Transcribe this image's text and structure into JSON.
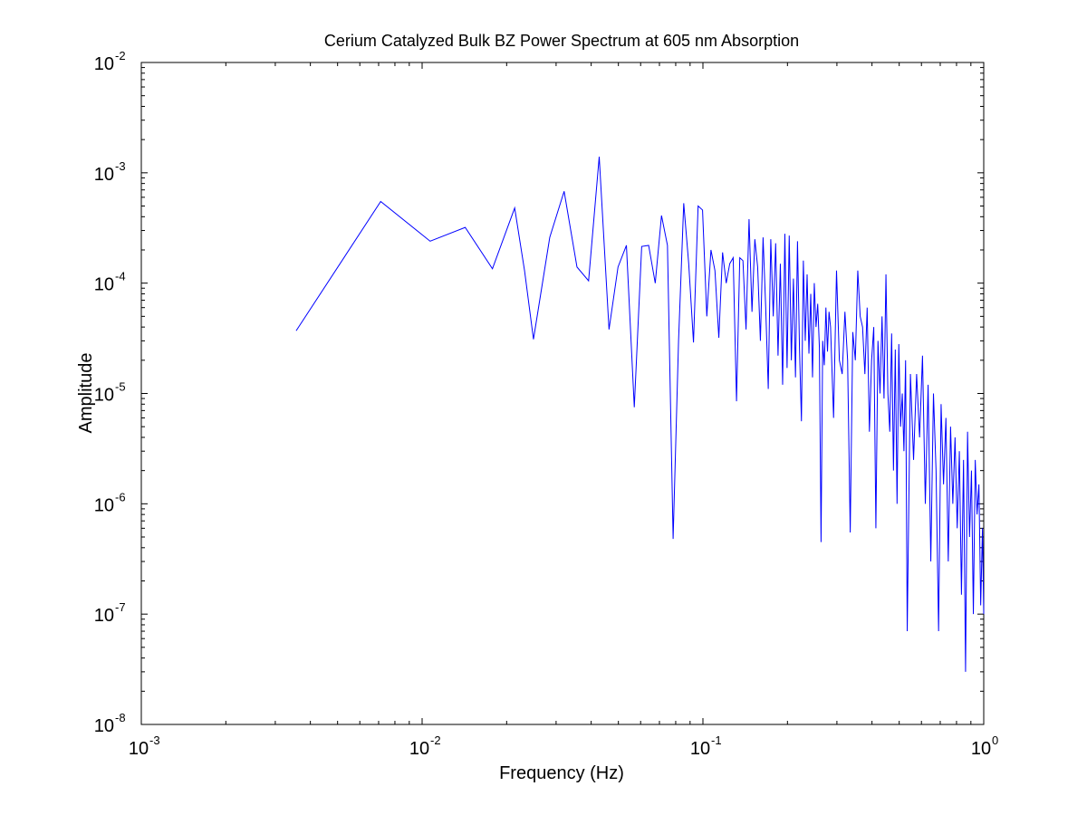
{
  "chart_data": {
    "type": "line",
    "title": "Cerium Catalyzed Bulk BZ Power Spectrum at 605 nm Absorption",
    "xlabel": "Frequency (Hz)",
    "ylabel": "Amplitude",
    "xscale": "log",
    "yscale": "log",
    "xlim": [
      0.001,
      1
    ],
    "ylim": [
      1e-08,
      0.01
    ],
    "grid": false,
    "legend": "none",
    "line_color": "#0000ff",
    "x_ticks": [
      {
        "base": "10",
        "exp": "-3",
        "value": 0.001
      },
      {
        "base": "10",
        "exp": "-2",
        "value": 0.01
      },
      {
        "base": "10",
        "exp": "-1",
        "value": 0.1
      },
      {
        "base": "10",
        "exp": "0",
        "value": 1
      }
    ],
    "y_ticks": [
      {
        "base": "10",
        "exp": "-8",
        "value": 1e-08
      },
      {
        "base": "10",
        "exp": "-7",
        "value": 1e-07
      },
      {
        "base": "10",
        "exp": "-6",
        "value": 1e-06
      },
      {
        "base": "10",
        "exp": "-5",
        "value": 1e-05
      },
      {
        "base": "10",
        "exp": "-4",
        "value": 0.0001
      },
      {
        "base": "10",
        "exp": "-3",
        "value": 0.001
      },
      {
        "base": "10",
        "exp": "-2",
        "value": 0.01
      }
    ],
    "series": [
      {
        "x": [
          0.00356,
          0.00712,
          0.01068,
          0.01424,
          0.0178,
          0.02136,
          0.02316,
          0.02492,
          0.02848,
          0.03204,
          0.0356,
          0.03916,
          0.04272,
          0.0463,
          0.04985,
          0.0534,
          0.05696,
          0.06052,
          0.06408,
          0.06764,
          0.0712,
          0.07476,
          0.07832,
          0.08188,
          0.08544,
          0.089,
          0.09256,
          0.09612,
          0.09968,
          0.10324,
          0.1068,
          0.11036,
          0.11392,
          0.11748,
          0.12104,
          0.1246,
          0.12816,
          0.13172,
          0.13528,
          0.13884,
          0.1424,
          0.14596,
          0.14952,
          0.15308,
          0.15664,
          0.1602,
          0.16376,
          0.16732,
          0.17088,
          0.17444,
          0.178,
          0.18156,
          0.18512,
          0.18868,
          0.19224,
          0.1958,
          0.19936,
          0.20292,
          0.20648,
          0.21004,
          0.2136,
          0.21716,
          0.22072,
          0.22428,
          0.22784,
          0.2314,
          0.23496,
          0.23852,
          0.24208,
          0.24564,
          0.2492,
          0.25276,
          0.25632,
          0.25988,
          0.26344,
          0.267,
          0.27056,
          0.27412,
          0.27768,
          0.28124,
          0.2848,
          0.29192,
          0.29904,
          0.30616,
          0.31328,
          0.3204,
          0.32752,
          0.33464,
          0.34176,
          0.34888,
          0.356,
          0.36312,
          0.37024,
          0.37736,
          0.38448,
          0.3916,
          0.39872,
          0.40584,
          0.41296,
          0.42008,
          0.4272,
          0.43432,
          0.44144,
          0.44856,
          0.45568,
          0.4628,
          0.46992,
          0.47704,
          0.48416,
          0.49128,
          0.4984,
          0.50552,
          0.51264,
          0.51976,
          0.52688,
          0.534,
          0.54824,
          0.56248,
          0.57672,
          0.59096,
          0.6052,
          0.61944,
          0.63368,
          0.64792,
          0.66216,
          0.6764,
          0.69064,
          0.70488,
          0.71912,
          0.73336,
          0.7476,
          0.76184,
          0.77608,
          0.79032,
          0.80456,
          0.8188,
          0.83304,
          0.84728,
          0.86152,
          0.87576,
          0.89,
          0.90424,
          0.91848,
          0.93272,
          0.94696,
          0.9612,
          0.97544,
          0.98968,
          1.0
        ],
        "y": [
          3.7e-05,
          0.00055,
          0.00024,
          0.00032,
          0.000135,
          0.00048,
          0.00013,
          3.1e-05,
          0.00026,
          0.00068,
          0.00014,
          0.000105,
          0.0014,
          3.8e-05,
          0.00014,
          0.00022,
          7.5e-06,
          0.000215,
          0.00022,
          0.0001,
          0.00041,
          0.00022,
          4.8e-07,
          3e-05,
          0.00053,
          0.00015,
          2.9e-05,
          0.0005,
          0.00046,
          5e-05,
          0.0002,
          0.00013,
          3.2e-05,
          0.00019,
          0.0001,
          0.00015,
          0.00017,
          8.5e-06,
          0.00017,
          0.00016,
          3.8e-05,
          0.00038,
          5.5e-05,
          0.00025,
          0.00014,
          3e-05,
          0.00026,
          6e-05,
          1.1e-05,
          0.00025,
          5e-05,
          0.00023,
          2.2e-05,
          0.00015,
          1.2e-05,
          0.00028,
          1.7e-05,
          0.00027,
          2e-05,
          0.00011,
          1.4e-05,
          0.00024,
          2.6e-05,
          5.6e-06,
          0.00016,
          3e-05,
          0.00012,
          2.3e-05,
          8e-05,
          1.4e-05,
          0.0001,
          4e-05,
          6.5e-05,
          2.6e-05,
          4.5e-07,
          3e-05,
          1.8e-05,
          6e-05,
          2.4e-05,
          5.5e-05,
          4e-05,
          6e-06,
          0.00013,
          2e-05,
          1.5e-05,
          5.5e-05,
          2e-05,
          5.5e-07,
          3.6e-05,
          2e-05,
          0.00013,
          5e-05,
          4e-05,
          1.5e-05,
          6e-05,
          4.5e-06,
          2e-05,
          4e-05,
          6e-07,
          3e-05,
          1e-05,
          5e-05,
          9e-06,
          0.00012,
          1e-05,
          4.5e-06,
          3.5e-05,
          2e-06,
          2.5e-05,
          1e-06,
          2.8e-05,
          5e-06,
          1e-05,
          3e-06,
          2e-05,
          7e-08,
          1.5e-05,
          2.5e-06,
          1.5e-05,
          4e-06,
          2.2e-05,
          1e-06,
          1.2e-05,
          3e-07,
          1e-05,
          2e-06,
          7e-08,
          8e-06,
          1.5e-06,
          6e-06,
          3e-07,
          5e-06,
          1e-06,
          4e-06,
          6e-07,
          3e-06,
          1.5e-07,
          2.5e-06,
          3e-08,
          4.5e-06,
          5e-07,
          2e-06,
          1e-07,
          2.5e-06,
          8e-07,
          1.5e-06,
          1.2e-07,
          6e-07,
          1e-07
        ]
      }
    ]
  }
}
